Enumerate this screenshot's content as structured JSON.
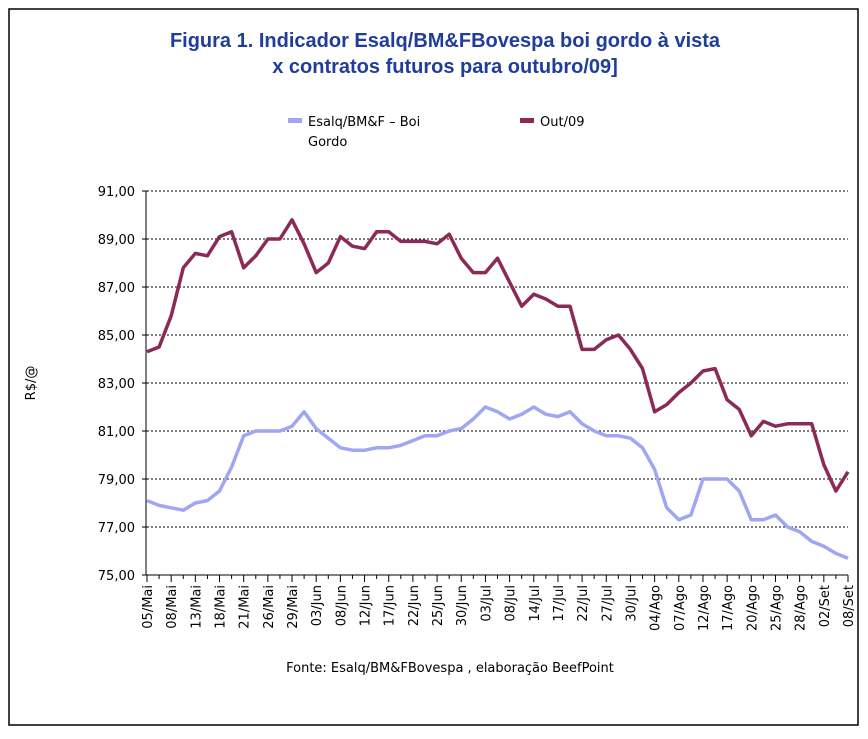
{
  "chart_data": {
    "type": "line",
    "title": [
      "Figura 1. Indicador Esalq/BM&FBovespa boi gordo à vista",
      "x contratos futuros para outubro/09]"
    ],
    "y_label": "R$/@",
    "source": "Fonte: Esalq/BM&FBovespa , elaboração BeefPoint",
    "legend_lines": [
      [
        "Esalq/BM&F – Boi",
        "Gordo"
      ],
      [
        "Out/09"
      ]
    ],
    "categories": [
      "05/Mai",
      null,
      "08/Mai",
      null,
      "13/Mai",
      null,
      "18/Mai",
      null,
      "21/Mai",
      null,
      "26/Mai",
      null,
      "29/Mai",
      null,
      "03/Jun",
      null,
      "08/Jun",
      null,
      "12/Jun",
      null,
      "17/Jun",
      null,
      "22/Jun",
      null,
      "25/Jun",
      null,
      "30/Jun",
      null,
      "03/Jul",
      null,
      "08/Jul",
      null,
      "14/Jul",
      null,
      "17/Jul",
      null,
      "22/Jul",
      null,
      "27/Jul",
      null,
      "30/Jul",
      null,
      "04/Ago",
      null,
      "07/Ago",
      null,
      "12/Ago",
      null,
      "17/Ago",
      null,
      "20/Ago",
      null,
      "25/Ago",
      null,
      "28/Ago",
      null,
      "02/Set",
      null,
      "08/Set"
    ],
    "series": [
      {
        "name": "Esalq/BM&F – Boi Gordo",
        "color": "#9fa6f2",
        "values": [
          78.1,
          77.9,
          77.8,
          77.7,
          78.0,
          78.1,
          78.5,
          79.5,
          80.8,
          81.0,
          81.0,
          81.0,
          81.2,
          81.8,
          81.1,
          80.7,
          80.3,
          80.2,
          80.2,
          80.3,
          80.3,
          80.4,
          80.6,
          80.8,
          80.8,
          81.0,
          81.1,
          81.5,
          82.0,
          81.8,
          81.5,
          81.7,
          82.0,
          81.7,
          81.6,
          81.8,
          81.3,
          81.0,
          80.8,
          80.8,
          80.7,
          80.3,
          79.4,
          77.8,
          77.3,
          77.5,
          79.0,
          79.0,
          79.0,
          78.5,
          77.3,
          77.3,
          77.5,
          77.0,
          76.8,
          76.4,
          76.2,
          75.9,
          75.7
        ]
      },
      {
        "name": "Out/09",
        "color": "#8b2a57",
        "values": [
          84.3,
          84.5,
          85.8,
          87.8,
          88.4,
          88.3,
          89.1,
          89.3,
          87.8,
          88.3,
          89.0,
          89.0,
          89.8,
          88.8,
          87.6,
          88.0,
          89.1,
          88.7,
          88.6,
          89.3,
          89.3,
          88.9,
          88.9,
          88.9,
          88.8,
          89.2,
          88.2,
          87.6,
          87.6,
          88.2,
          87.2,
          86.2,
          86.7,
          86.5,
          86.2,
          86.2,
          84.4,
          84.4,
          84.8,
          85.0,
          84.4,
          83.6,
          81.8,
          82.1,
          82.6,
          83.0,
          83.5,
          83.6,
          82.3,
          81.9,
          80.8,
          81.4,
          81.2,
          81.3,
          81.3,
          81.3,
          79.6,
          78.5,
          79.3
        ]
      }
    ],
    "ylim": [
      75,
      91
    ],
    "yticks": [
      {
        "value": 75,
        "label": "75,00"
      },
      {
        "value": 77,
        "label": "77,00"
      },
      {
        "value": 79,
        "label": "79,00"
      },
      {
        "value": 81,
        "label": "81,00"
      },
      {
        "value": 83,
        "label": "83,00"
      },
      {
        "value": 85,
        "label": "85,00"
      },
      {
        "value": 87,
        "label": "87,00"
      },
      {
        "value": 89,
        "label": "89,00"
      },
      {
        "value": 91,
        "label": "91,00"
      }
    ],
    "grid": true
  }
}
